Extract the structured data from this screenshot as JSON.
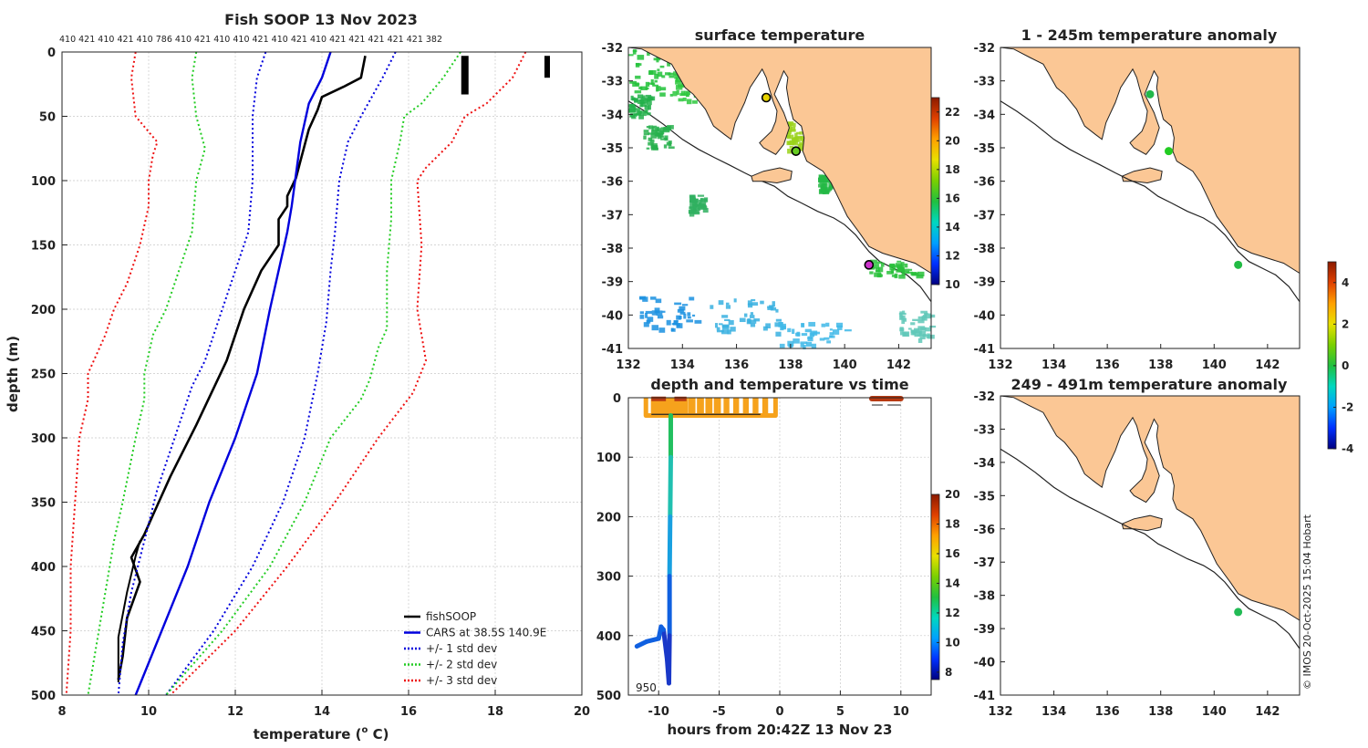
{
  "chart_data": [
    {
      "id": "profile",
      "type": "line",
      "title": "Fish SOOP 13 Nov 2023",
      "top_counts": "410 421 410 421 410 786 410 421 410 410 421 410 421 410 421 421 421 421 421 382",
      "xlabel": "temperature (",
      "xlabel_sup": "o",
      "xlabel_end": " C)",
      "ylabel": "depth (m)",
      "xlim": [
        8,
        20
      ],
      "ylim": [
        500,
        0
      ],
      "x_ticks": [
        "8",
        "10",
        "12",
        "14",
        "16",
        "18",
        "20"
      ],
      "y_ticks": [
        "0",
        "50",
        "100",
        "150",
        "200",
        "250",
        "300",
        "350",
        "400",
        "450",
        "500"
      ],
      "legend": [
        {
          "label": "fishSOOP",
          "color": "#000000",
          "style": "solid"
        },
        {
          "label": "CARS at 38.5S 140.9E",
          "color": "#0000dd",
          "style": "solid"
        },
        {
          "label": "+/- 1 std dev",
          "color": "#0000dd",
          "style": "dotted"
        },
        {
          "label": "+/- 2 std dev",
          "color": "#22cc22",
          "style": "dotted"
        },
        {
          "label": "+/- 3 std dev",
          "color": "#ee1111",
          "style": "dotted"
        }
      ],
      "series": [
        {
          "name": "fishSOOP",
          "color": "#000000",
          "width": 2.6,
          "dash": "",
          "points": [
            [
              15.0,
              3
            ],
            [
              14.9,
              20
            ],
            [
              14.5,
              27
            ],
            [
              14.0,
              35
            ],
            [
              13.9,
              45
            ],
            [
              13.7,
              60
            ],
            [
              13.5,
              85
            ],
            [
              13.4,
              98
            ],
            [
              13.2,
              112
            ],
            [
              13.2,
              120
            ],
            [
              13.0,
              130
            ],
            [
              13.0,
              150
            ],
            [
              12.6,
              170
            ],
            [
              12.2,
              200
            ],
            [
              11.8,
              240
            ],
            [
              11.1,
              290
            ],
            [
              10.5,
              330
            ],
            [
              10.1,
              360
            ],
            [
              9.9,
              375
            ],
            [
              9.6,
              393
            ],
            [
              9.8,
              412
            ],
            [
              9.5,
              440
            ],
            [
              9.4,
              470
            ],
            [
              9.3,
              488
            ]
          ]
        },
        {
          "name": "fishSOOP (second cast)",
          "color": "#000000",
          "width": 2.0,
          "dash": "",
          "points": [
            [
              9.8,
              380
            ],
            [
              9.7,
              392
            ],
            [
              9.5,
              420
            ],
            [
              9.3,
              455
            ],
            [
              9.3,
              490
            ]
          ]
        },
        {
          "name": "CARS at 38.5S 140.9E",
          "color": "#0000dd",
          "width": 2.4,
          "dash": "",
          "points": [
            [
              14.2,
              0
            ],
            [
              14.0,
              20
            ],
            [
              13.7,
              40
            ],
            [
              13.5,
              70
            ],
            [
              13.3,
              120
            ],
            [
              13.2,
              140
            ],
            [
              13.0,
              170
            ],
            [
              12.8,
              200
            ],
            [
              12.5,
              250
            ],
            [
              12.0,
              300
            ],
            [
              11.4,
              350
            ],
            [
              10.9,
              400
            ],
            [
              10.3,
              450
            ],
            [
              9.7,
              500
            ]
          ]
        },
        {
          "name": "CARS -1 std",
          "color": "#0000dd",
          "width": 2.0,
          "dash": "2,3",
          "points": [
            [
              12.7,
              0
            ],
            [
              12.5,
              20
            ],
            [
              12.4,
              50
            ],
            [
              12.4,
              100
            ],
            [
              12.3,
              140
            ],
            [
              12.0,
              170
            ],
            [
              11.7,
              200
            ],
            [
              11.3,
              240
            ],
            [
              11.0,
              260
            ],
            [
              10.6,
              300
            ],
            [
              10.2,
              340
            ],
            [
              9.9,
              380
            ],
            [
              9.6,
              420
            ],
            [
              9.4,
              460
            ],
            [
              9.3,
              500
            ]
          ]
        },
        {
          "name": "CARS +1 std",
          "color": "#0000dd",
          "width": 2.0,
          "dash": "2,3",
          "points": [
            [
              15.7,
              0
            ],
            [
              15.4,
              20
            ],
            [
              14.9,
              50
            ],
            [
              14.6,
              70
            ],
            [
              14.4,
              100
            ],
            [
              14.3,
              140
            ],
            [
              14.2,
              170
            ],
            [
              14.1,
              210
            ],
            [
              13.9,
              250
            ],
            [
              13.6,
              300
            ],
            [
              13.1,
              350
            ],
            [
              12.4,
              400
            ],
            [
              11.5,
              450
            ],
            [
              10.4,
              500
            ]
          ]
        },
        {
          "name": "CARS -2 std",
          "color": "#22cc22",
          "width": 2.0,
          "dash": "2,3",
          "points": [
            [
              11.1,
              0
            ],
            [
              11.0,
              20
            ],
            [
              11.1,
              50
            ],
            [
              11.3,
              75
            ],
            [
              11.1,
              100
            ],
            [
              11.0,
              140
            ],
            [
              10.7,
              170
            ],
            [
              10.4,
              200
            ],
            [
              10.1,
              220
            ],
            [
              9.9,
              250
            ],
            [
              9.9,
              270
            ],
            [
              9.7,
              300
            ],
            [
              9.4,
              350
            ],
            [
              9.2,
              380
            ],
            [
              9.0,
              420
            ],
            [
              8.8,
              460
            ],
            [
              8.6,
              500
            ]
          ]
        },
        {
          "name": "CARS +2 std",
          "color": "#22cc22",
          "width": 2.0,
          "dash": "2,3",
          "points": [
            [
              17.2,
              0
            ],
            [
              16.8,
              20
            ],
            [
              16.3,
              40
            ],
            [
              15.9,
              50
            ],
            [
              15.8,
              70
            ],
            [
              15.6,
              100
            ],
            [
              15.6,
              130
            ],
            [
              15.5,
              170
            ],
            [
              15.5,
              215
            ],
            [
              15.3,
              230
            ],
            [
              15.1,
              255
            ],
            [
              14.9,
              270
            ],
            [
              14.2,
              300
            ],
            [
              13.6,
              350
            ],
            [
              12.8,
              400
            ],
            [
              11.7,
              450
            ],
            [
              10.4,
              500
            ]
          ]
        },
        {
          "name": "CARS -3 std",
          "color": "#ee1111",
          "width": 2.0,
          "dash": "2,3",
          "points": [
            [
              9.7,
              0
            ],
            [
              9.6,
              20
            ],
            [
              9.7,
              50
            ],
            [
              10.2,
              70
            ],
            [
              10.1,
              80
            ],
            [
              10.0,
              100
            ],
            [
              10.0,
              120
            ],
            [
              9.8,
              150
            ],
            [
              9.5,
              180
            ],
            [
              9.2,
              200
            ],
            [
              9.0,
              220
            ],
            [
              8.6,
              250
            ],
            [
              8.6,
              270
            ],
            [
              8.4,
              300
            ],
            [
              8.3,
              350
            ],
            [
              8.2,
              400
            ],
            [
              8.2,
              450
            ],
            [
              8.1,
              500
            ]
          ]
        },
        {
          "name": "CARS +3 std",
          "color": "#ee1111",
          "width": 2.0,
          "dash": "2,3",
          "points": [
            [
              18.7,
              0
            ],
            [
              18.4,
              20
            ],
            [
              17.8,
              40
            ],
            [
              17.3,
              50
            ],
            [
              17.0,
              70
            ],
            [
              16.4,
              90
            ],
            [
              16.2,
              100
            ],
            [
              16.3,
              150
            ],
            [
              16.2,
              200
            ],
            [
              16.4,
              240
            ],
            [
              16.1,
              265
            ],
            [
              15.3,
              300
            ],
            [
              14.3,
              350
            ],
            [
              13.2,
              400
            ],
            [
              12.0,
              450
            ],
            [
              10.5,
              500
            ]
          ]
        }
      ],
      "inset_bars": [
        {
          "x": 17.3,
          "y0": 3,
          "y1": 33,
          "w": 8
        },
        {
          "x": 19.2,
          "y0": 3,
          "y1": 20,
          "w": 6
        }
      ]
    },
    {
      "id": "sst",
      "type": "heatmap",
      "title": "surface temperature",
      "xlim": [
        132,
        143.2
      ],
      "ylim": [
        -41,
        -32
      ],
      "x_ticks": [
        "132",
        "134",
        "136",
        "138",
        "140",
        "142"
      ],
      "y_ticks": [
        "-32",
        "-33",
        "-34",
        "-35",
        "-36",
        "-37",
        "-38",
        "-39",
        "-40",
        "-41"
      ],
      "colorbar": {
        "min": 10,
        "max": 23,
        "ticks": [
          "10",
          "12",
          "14",
          "16",
          "18",
          "20",
          "22"
        ]
      },
      "markers": [
        {
          "lon": 137.1,
          "lat": -33.5,
          "color": "#e6d200"
        },
        {
          "lon": 138.2,
          "lat": -35.1,
          "color": "#66cc22"
        },
        {
          "lon": 140.9,
          "lat": -38.5,
          "color": "#cc33cc"
        }
      ]
    },
    {
      "id": "depth_time",
      "type": "scatter",
      "title": "depth and temperature vs time",
      "xlabel": "hours from 20:42Z 13 Nov 23",
      "xlim": [
        -12.5,
        12.5
      ],
      "ylim": [
        500,
        0
      ],
      "x_ticks": [
        "-10",
        "-5",
        "0",
        "5",
        "10"
      ],
      "y_ticks": [
        "0",
        "100",
        "200",
        "300",
        "400",
        "500"
      ],
      "annotation": "950",
      "colorbar": {
        "min": 7.5,
        "max": 20,
        "ticks": [
          "8",
          "10",
          "12",
          "14",
          "16",
          "18",
          "20"
        ]
      },
      "dives": [
        {
          "t": -10.6,
          "d": 30
        },
        {
          "t": -10.0,
          "d": 30
        },
        {
          "t": -9.4,
          "d": 30
        },
        {
          "t": -8.8,
          "d": 30
        },
        {
          "t": -8.2,
          "d": 30
        },
        {
          "t": -7.6,
          "d": 30
        },
        {
          "t": -6.9,
          "d": 30
        },
        {
          "t": -6.2,
          "d": 30
        },
        {
          "t": -5.5,
          "d": 30
        },
        {
          "t": -4.8,
          "d": 30
        },
        {
          "t": -4.0,
          "d": 30
        },
        {
          "t": -3.2,
          "d": 30
        },
        {
          "t": -2.4,
          "d": 30
        },
        {
          "t": -1.6,
          "d": 30
        },
        {
          "t": -0.8,
          "d": 30
        }
      ],
      "deep_cast": [
        [
          -9.0,
          30
        ],
        [
          -9.0,
          100
        ],
        [
          -9.05,
          200
        ],
        [
          -9.1,
          300
        ],
        [
          -9.1,
          400
        ],
        [
          -9.15,
          480
        ],
        [
          -9.3,
          440
        ],
        [
          -9.6,
          390
        ],
        [
          -9.8,
          385
        ],
        [
          -10.0,
          405
        ],
        [
          -11.0,
          410
        ],
        [
          -11.8,
          418
        ]
      ],
      "late_points": {
        "t0": 7.6,
        "t1": 10.0,
        "d": 0,
        "color": "#b83a12"
      }
    },
    {
      "id": "anom_shallow",
      "type": "scatter",
      "title": "1 - 245m temperature anomaly",
      "xlim": [
        132,
        143.2
      ],
      "ylim": [
        -41,
        -32
      ],
      "x_ticks": [
        "132",
        "134",
        "136",
        "138",
        "140",
        "142"
      ],
      "y_ticks": [
        "-32",
        "-33",
        "-34",
        "-35",
        "-36",
        "-37",
        "-38",
        "-39",
        "-40",
        "-41"
      ],
      "colorbar": {
        "min": -4,
        "max": 5,
        "ticks": [
          "-4",
          "-2",
          "0",
          "2",
          "4"
        ]
      },
      "points": [
        {
          "lon": 137.6,
          "lat": -33.4,
          "color": "#22b84a"
        },
        {
          "lon": 138.3,
          "lat": -35.1,
          "color": "#22cc22"
        },
        {
          "lon": 140.9,
          "lat": -38.5,
          "color": "#22bb44"
        }
      ]
    },
    {
      "id": "anom_deep",
      "type": "scatter",
      "title": "249 - 491m temperature anomaly",
      "xlim": [
        132,
        143.2
      ],
      "ylim": [
        -41,
        -32
      ],
      "x_ticks": [
        "132",
        "134",
        "136",
        "138",
        "140",
        "142"
      ],
      "y_ticks": [
        "-32",
        "-33",
        "-34",
        "-35",
        "-36",
        "-37",
        "-38",
        "-39",
        "-40",
        "-41"
      ],
      "points": [
        {
          "lon": 140.9,
          "lat": -38.5,
          "color": "#22bb55"
        }
      ]
    }
  ],
  "credit": "© IMOS 20-Oct-2025 15:04 Hobart",
  "colors": {
    "land": "#fbc795",
    "coast": "#222222",
    "grid": "#c9c9c9"
  }
}
